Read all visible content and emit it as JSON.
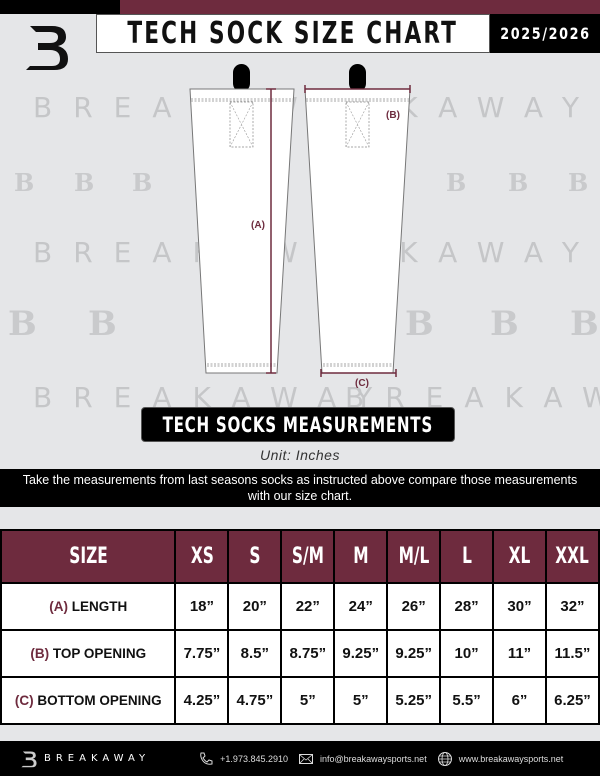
{
  "header": {
    "title": "TECH SOCK SIZE CHART",
    "season": "2025/2026"
  },
  "colors": {
    "brand": "#6e2b3e",
    "dark": "#000000",
    "background": "#e5e6e8"
  },
  "watermark": {
    "text": "BREAKAWAY",
    "logo_letter": "B"
  },
  "diagram": {
    "label_a": "(A)",
    "label_b": "(B)",
    "label_c": "(C)"
  },
  "measurements": {
    "title": "TECH SOCKS MEASUREMENTS",
    "unit": "Unit: Inches",
    "instructions": "Take the measurements from last seasons socks as instructed above compare those measurements  with our size chart."
  },
  "table": {
    "header": "SIZE",
    "sizes": [
      "XS",
      "S",
      "S/M",
      "M",
      "M/L",
      "L",
      "XL",
      "XXL"
    ],
    "rows": [
      {
        "code": "(A)",
        "label": "LENGTH",
        "values": [
          "18”",
          "20”",
          "22”",
          "24”",
          "26”",
          "28”",
          "30”",
          "32”"
        ]
      },
      {
        "code": "(B)",
        "label": "TOP OPENING",
        "values": [
          "7.75”",
          "8.5”",
          "8.75”",
          "9.25”",
          "9.25”",
          "10”",
          "11”",
          "11.5”"
        ]
      },
      {
        "code": "(C)",
        "label": "BOTTOM OPENING",
        "values": [
          "4.25”",
          "4.75”",
          "5”",
          "5”",
          "5.25”",
          "5.5”",
          "6”",
          "6.25”"
        ]
      }
    ]
  },
  "footer": {
    "brand": "BREAKAWAY",
    "phone": "+1.973.845.2910",
    "email": "info@breakawaysports.net",
    "website": "www.breakawaysports.net",
    "icons": [
      "phone-icon",
      "mail-icon",
      "globe-icon"
    ]
  }
}
